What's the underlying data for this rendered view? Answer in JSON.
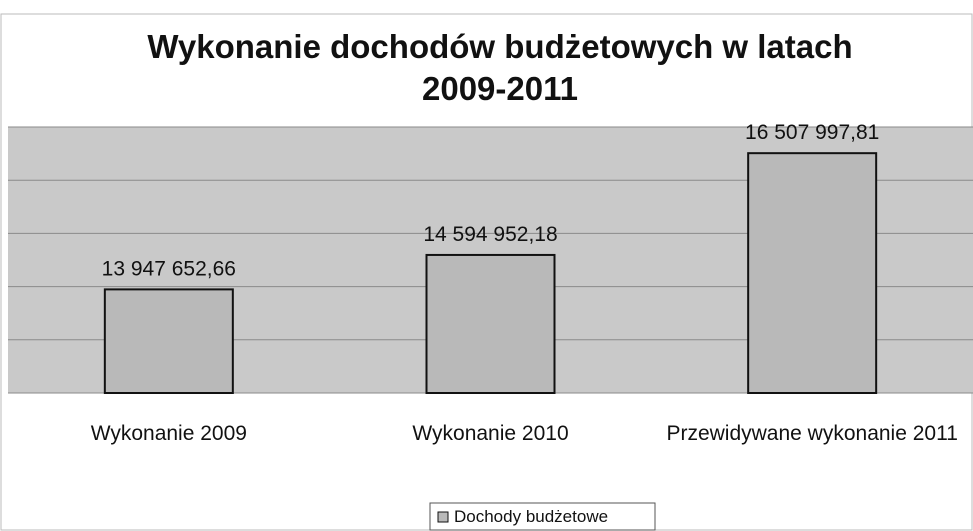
{
  "chart_data": {
    "type": "bar",
    "title": "Wykonanie dochodów budżetowych w latach 2009-2011",
    "categories": [
      "Wykonanie 2009",
      "Wykonanie 2010",
      "Przewidywane wykonanie 2011"
    ],
    "series": [
      {
        "name": "Dochody budżetowe",
        "color": "#b9b9b9",
        "values": [
          13947652.66,
          14594952.18,
          16507997.81
        ],
        "value_labels": [
          "13 947 652,66",
          "14 594 952,18",
          "16 507 997,81"
        ]
      }
    ],
    "ylim": [
      12000000,
      17000000
    ],
    "yticks": [
      12000000,
      13000000,
      14000000,
      15000000,
      16000000,
      17000000
    ],
    "grid": true,
    "legend": "bottom"
  }
}
